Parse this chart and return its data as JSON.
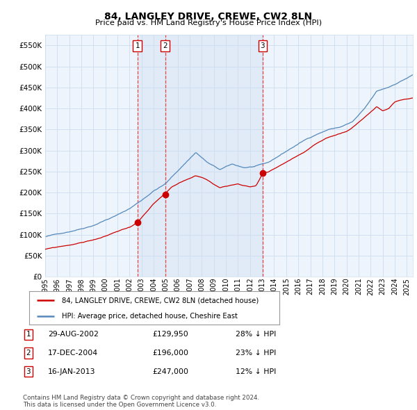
{
  "title": "84, LANGLEY DRIVE, CREWE, CW2 8LN",
  "subtitle": "Price paid vs. HM Land Registry's House Price Index (HPI)",
  "ytick_values": [
    0,
    50000,
    100000,
    150000,
    200000,
    250000,
    300000,
    350000,
    400000,
    450000,
    500000,
    550000
  ],
  "ylim": [
    0,
    575000
  ],
  "xlim_start": 1995.0,
  "xlim_end": 2025.5,
  "sales": [
    {
      "date_num": 2002.66,
      "price": 129950,
      "label": "1"
    },
    {
      "date_num": 2004.96,
      "price": 196000,
      "label": "2"
    },
    {
      "date_num": 2013.04,
      "price": 247000,
      "label": "3"
    }
  ],
  "sale_color": "#cc0000",
  "hpi_color": "#5588bb",
  "hpi_fill_color": "#ddeeff",
  "vline_color": "#ee4444",
  "vspan_color": "#ddeeff",
  "legend_entries": [
    "84, LANGLEY DRIVE, CREWE, CW2 8LN (detached house)",
    "HPI: Average price, detached house, Cheshire East"
  ],
  "table_rows": [
    {
      "num": "1",
      "date": "29-AUG-2002",
      "price": "£129,950",
      "note": "28% ↓ HPI"
    },
    {
      "num": "2",
      "date": "17-DEC-2004",
      "price": "£196,000",
      "note": "23% ↓ HPI"
    },
    {
      "num": "3",
      "date": "16-JAN-2013",
      "price": "£247,000",
      "note": "12% ↓ HPI"
    }
  ],
  "footer": "Contains HM Land Registry data © Crown copyright and database right 2024.\nThis data is licensed under the Open Government Licence v3.0.",
  "background_color": "#ffffff",
  "grid_color": "#ccddee",
  "chart_bg": "#eef4fb"
}
